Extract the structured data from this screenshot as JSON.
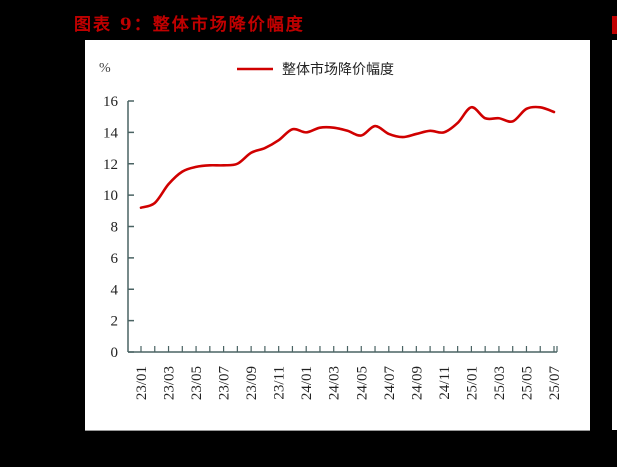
{
  "title": "图表 9：整体市场降价幅度",
  "chart_data": {
    "type": "line",
    "title": "图表 9：整体市场降价幅度",
    "ylabel": "%",
    "xlabel": "",
    "ylim": [
      0,
      16
    ],
    "yticks": [
      0,
      2,
      4,
      6,
      8,
      10,
      12,
      14,
      16
    ],
    "grid": false,
    "legend_position": "top",
    "x": [
      "23/01",
      "23/02",
      "23/03",
      "23/04",
      "23/05",
      "23/06",
      "23/07",
      "23/08",
      "23/09",
      "23/10",
      "23/11",
      "23/12",
      "24/01",
      "24/02",
      "24/03",
      "24/04",
      "24/05",
      "24/06",
      "24/07",
      "24/08",
      "24/09",
      "24/10",
      "24/11",
      "24/12",
      "25/01",
      "25/02",
      "25/03",
      "25/04",
      "25/05",
      "25/06",
      "25/07"
    ],
    "xtick_labels": [
      "23/01",
      "23/03",
      "23/05",
      "23/07",
      "23/09",
      "23/11",
      "24/01",
      "24/03",
      "24/05",
      "24/07",
      "24/09",
      "24/11",
      "25/01",
      "25/03",
      "25/05",
      "25/07"
    ],
    "series": [
      {
        "name": "整体市场降价幅度",
        "color": "#d00000",
        "values": [
          9.2,
          9.5,
          10.7,
          11.5,
          11.8,
          11.9,
          11.9,
          12.0,
          12.7,
          13.0,
          13.5,
          14.2,
          14.0,
          14.3,
          14.3,
          14.1,
          13.8,
          14.4,
          13.9,
          13.7,
          13.9,
          14.1,
          14.0,
          14.6,
          15.6,
          14.9,
          14.9,
          14.7,
          15.5,
          15.6,
          15.3
        ]
      }
    ]
  },
  "colors": {
    "title": "#c00000",
    "line": "#d00000",
    "axis": "#4a6363"
  }
}
